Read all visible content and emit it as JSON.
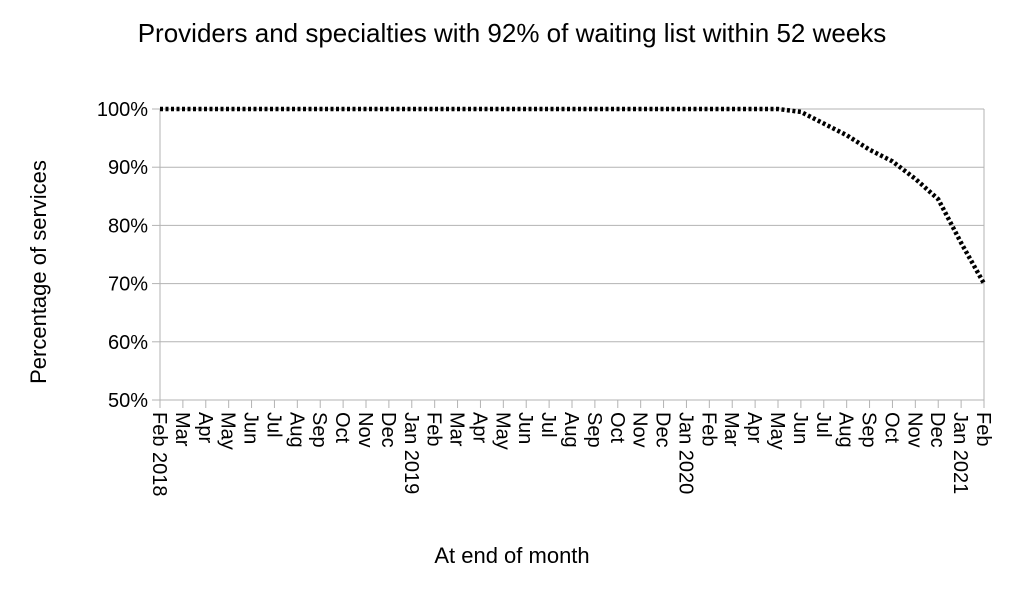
{
  "chart_data": {
    "type": "line",
    "title": "Providers and specialties with 92% of waiting list within 52 weeks",
    "x_label": "At end of month",
    "y_label": "Percentage of services",
    "categories": [
      "Feb 2018",
      "Mar",
      "Apr",
      "May",
      "Jun",
      "Jul",
      "Aug",
      "Sep",
      "Oct",
      "Nov",
      "Dec",
      "Jan 2019",
      "Feb",
      "Mar",
      "Apr",
      "May",
      "Jun",
      "Jul",
      "Aug",
      "Sep",
      "Oct",
      "Nov",
      "Dec",
      "Jan 2020",
      "Feb",
      "Mar",
      "Apr",
      "May",
      "Jun",
      "Jul",
      "Aug",
      "Sep",
      "Oct",
      "Nov",
      "Dec",
      "Jan 2021",
      "Feb"
    ],
    "series": [
      {
        "color": "#000000",
        "values": [
          100,
          100,
          100,
          100,
          100,
          100,
          100,
          100,
          100,
          100,
          100,
          100,
          100,
          100,
          100,
          100,
          100,
          100,
          100,
          100,
          100,
          100,
          100,
          100,
          100,
          100,
          100,
          100,
          99.5,
          97.5,
          95.5,
          93,
          91,
          88,
          84.5,
          77,
          70
        ]
      }
    ],
    "ylim": [
      50,
      100
    ],
    "yticks": [
      {
        "value": 50,
        "label": "50%"
      },
      {
        "value": 60,
        "label": "60%"
      },
      {
        "value": 70,
        "label": "70%"
      },
      {
        "value": 80,
        "label": "80%"
      },
      {
        "value": 90,
        "label": "90%"
      },
      {
        "value": 100,
        "label": "100%"
      }
    ],
    "grid": true
  }
}
